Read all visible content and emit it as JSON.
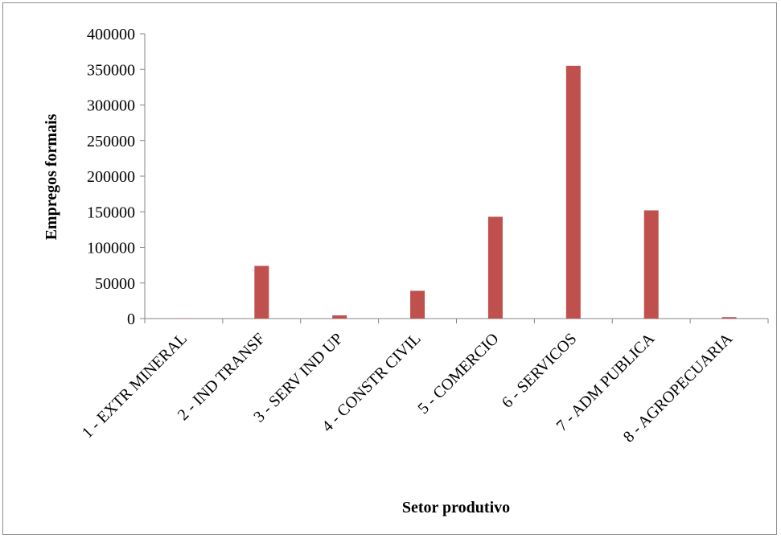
{
  "chart_data": {
    "type": "bar",
    "title": "",
    "xlabel": "Setor produtivo",
    "ylabel": "Empregos formais",
    "categories": [
      "1 - EXTR MINERAL",
      "2 - IND TRANSF",
      "3 - SERV IND UP",
      "4 - CONSTR CIVIL",
      "5 - COMERCIO",
      "6 - SERVICOS",
      "7 - ADM PUBLICA",
      "8 - AGROPECUARIA"
    ],
    "values": [
      300,
      74000,
      4500,
      39000,
      143000,
      355000,
      152000,
      2000
    ],
    "ylim": [
      0,
      400000
    ],
    "yticks": [
      "0",
      "50000",
      "100000",
      "150000",
      "200000",
      "250000",
      "300000",
      "350000",
      "400000"
    ],
    "grid": false,
    "legend": "none",
    "bar_color": "#c0504d"
  }
}
